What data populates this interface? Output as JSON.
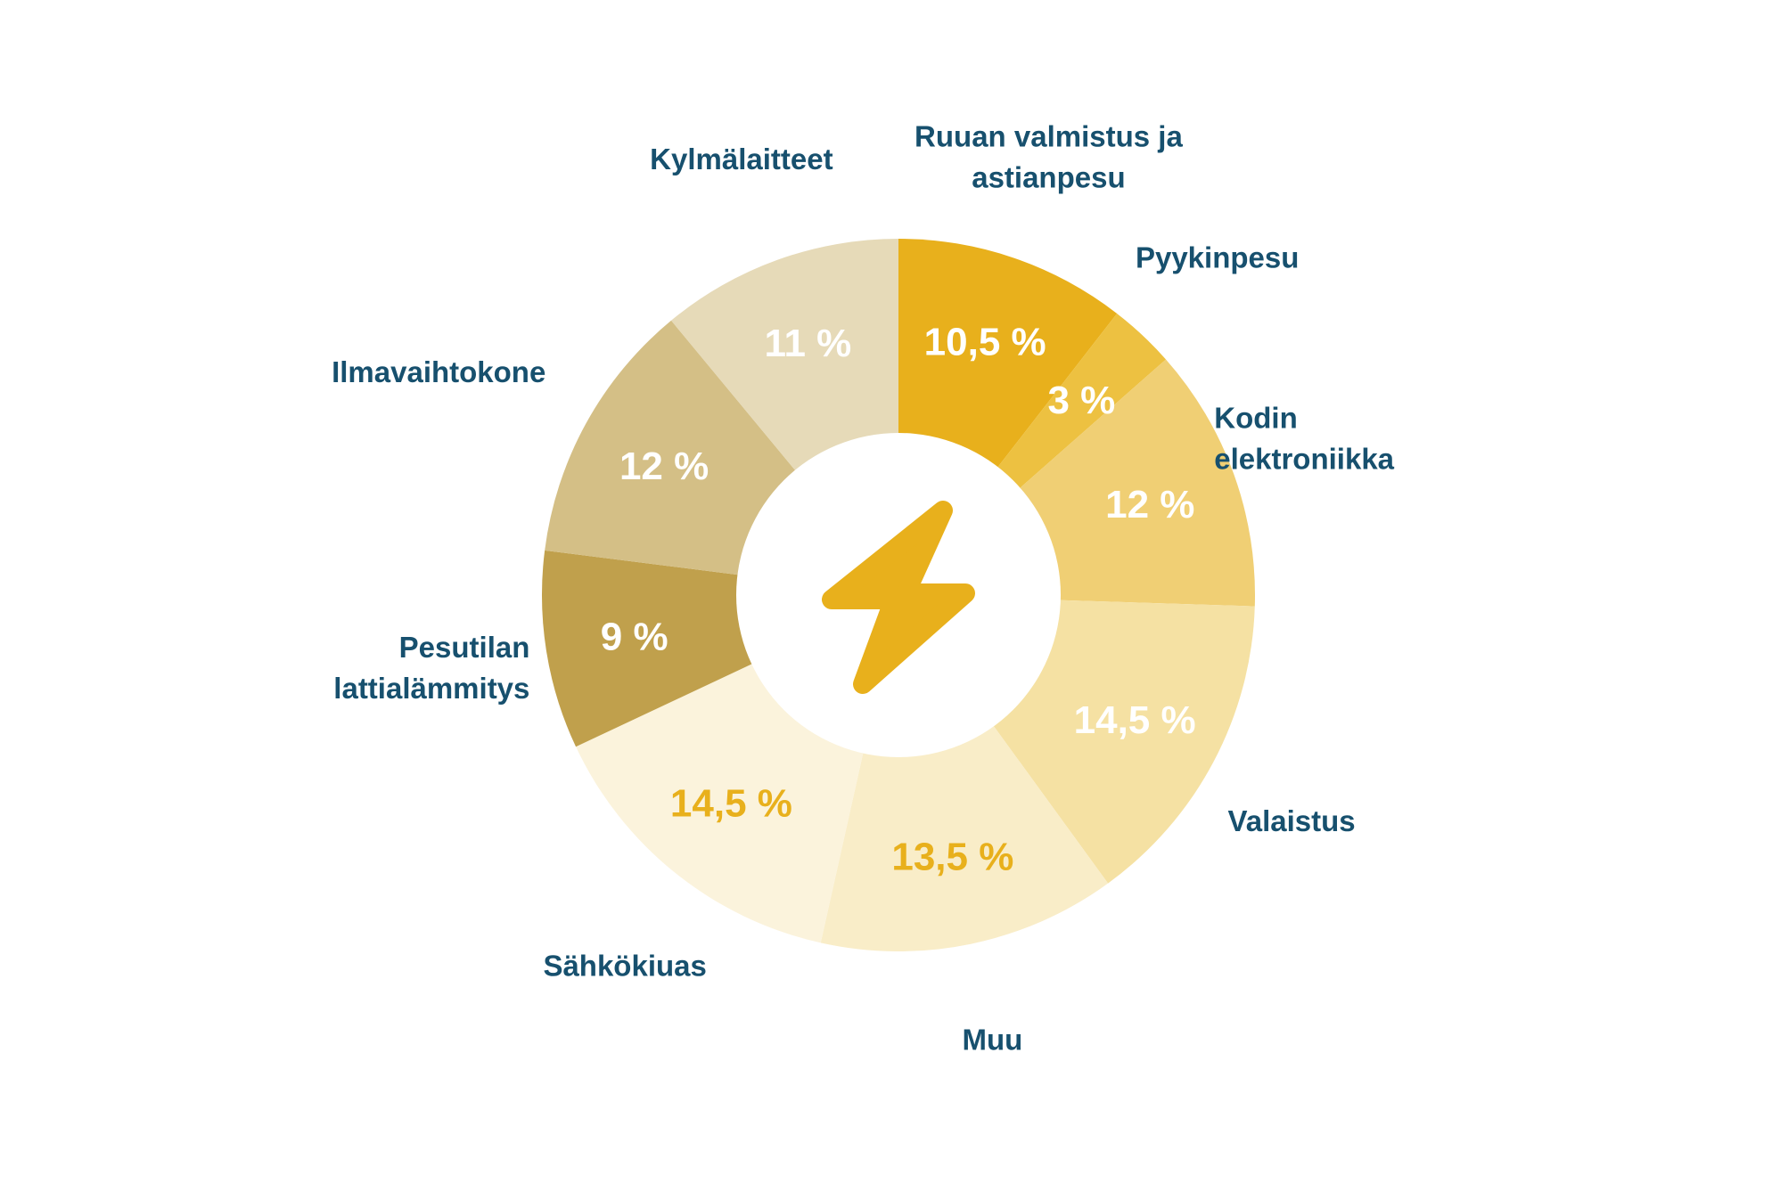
{
  "chart_data": {
    "type": "pie",
    "donut": true,
    "center_icon": "lightning-bolt-icon",
    "label_color": "#17506e",
    "icon_color": "#e8b01c",
    "slices": [
      {
        "category": [
          "Ruuan valmistus ja",
          "astianpesu"
        ],
        "value": 10.5,
        "value_label": "10,5 %",
        "color": "#e8b01c",
        "value_color": "#ffffff"
      },
      {
        "category": [
          "Pyykinpesu"
        ],
        "value": 3,
        "value_label": "3 %",
        "color": "#edc141",
        "value_color": "#ffffff"
      },
      {
        "category": [
          "Kodin",
          "elektroniikka"
        ],
        "value": 12,
        "value_label": "12 %",
        "color": "#f0cf74",
        "value_color": "#ffffff"
      },
      {
        "category": [
          "Valaistus"
        ],
        "value": 14.5,
        "value_label": "14,5 %",
        "color": "#f5e1a3",
        "value_color": "#ffffff"
      },
      {
        "category": [
          "Muu"
        ],
        "value": 13.5,
        "value_label": "13,5 %",
        "color": "#f9edc8",
        "value_color": "#e8b01c"
      },
      {
        "category": [
          "Sähkökiuas"
        ],
        "value": 14.5,
        "value_label": "14,5 %",
        "color": "#fbf3dc",
        "value_color": "#e8b01c"
      },
      {
        "category": [
          "Pesutilan",
          "lattialämmitys"
        ],
        "value": 9,
        "value_label": "9 %",
        "color": "#c0a04c",
        "value_color": "#ffffff"
      },
      {
        "category": [
          "Ilmavaihtokone"
        ],
        "value": 12,
        "value_label": "12 %",
        "color": "#d4bf86",
        "value_color": "#ffffff"
      },
      {
        "category": [
          "Kylmälaitteet"
        ],
        "value": 11,
        "value_label": "11 %",
        "color": "#e6dab8",
        "value_color": "#ffffff"
      }
    ]
  }
}
